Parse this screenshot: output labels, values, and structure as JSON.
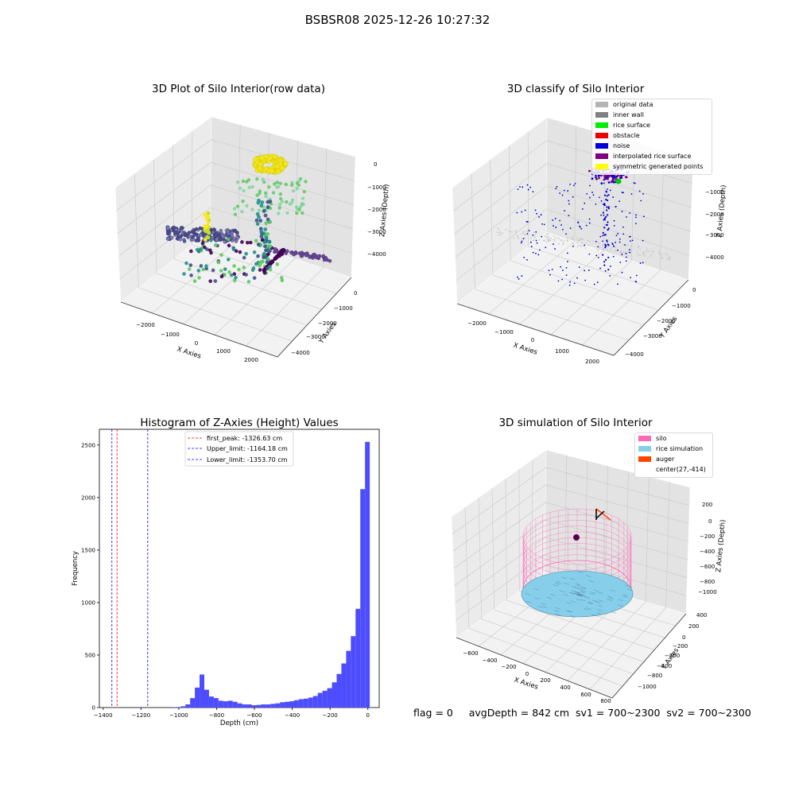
{
  "figure": {
    "suptitle": "BSBSR08 2025-12-26 10:27:32",
    "footer": "flag = 0     avgDepth = 842 cm  sv1 = 700~2300  sv2 = 700~2300"
  },
  "panel1": {
    "title": "3D Plot of Silo Interior(row data)",
    "xlabel": "X Axies",
    "ylabel": "Y Axies",
    "zlabel": "Z Axies (Depth)",
    "xticks": [
      "−2000",
      "−1000",
      "0",
      "1000",
      "2000"
    ],
    "yticks": [
      "0",
      "−1000",
      "−2000",
      "−3000",
      "−4000"
    ],
    "zticks": [
      "0",
      "−1000",
      "−2000",
      "−3000",
      "−4000"
    ]
  },
  "panel2": {
    "title": "3D classify of Silo Interior",
    "xlabel": "X Axies",
    "ylabel": "Y Axies",
    "zlabel": "Z Axies (Depth)",
    "xticks": [
      "−2000",
      "−1000",
      "0",
      "1000",
      "2000"
    ],
    "yticks": [
      "0",
      "−1000",
      "−2000",
      "−3000",
      "−4000"
    ],
    "zticks": [
      "−1000",
      "−2000",
      "−3000",
      "−4000"
    ],
    "legend": [
      {
        "label": "original data",
        "color": "#b4b4b4"
      },
      {
        "label": "inner wall",
        "color": "#808080"
      },
      {
        "label": "rice surface",
        "color": "#00ee00"
      },
      {
        "label": "obstacle",
        "color": "#ee0000"
      },
      {
        "label": "noise",
        "color": "#0000dd"
      },
      {
        "label": "interpolated rice surface",
        "color": "#800080"
      },
      {
        "label": "symmetric generated points",
        "color": "#ffff00"
      }
    ]
  },
  "panel4": {
    "title": "3D simulation of Silo Interior",
    "xlabel": "X Axies",
    "ylabel": "Y Axies",
    "zlabel": "Z Axies (Depth)",
    "xticks": [
      "−600",
      "−400",
      "−200",
      "0",
      "200",
      "400",
      "600",
      "800"
    ],
    "yticks": [
      "400",
      "200",
      "0",
      "−200",
      "−400",
      "−600",
      "−800",
      "−1000"
    ],
    "zticks": [
      "200",
      "0",
      "−200",
      "−400",
      "−600",
      "−800",
      "−1000"
    ],
    "legend": [
      {
        "label": "silo",
        "color": "#ff69b4"
      },
      {
        "label": "rice simulation",
        "color": "#87ceeb"
      },
      {
        "label": "auger",
        "color": "#ff4500"
      },
      {
        "label": "center(27,-414)",
        "color": ""
      }
    ]
  },
  "chart_data": [
    {
      "type": "histogram",
      "title": "Histogram of Z-Axies (Height) Values",
      "xlabel": "Depth (cm)",
      "ylabel": "Frequency",
      "xlim": [
        -1400,
        0
      ],
      "ylim": [
        0,
        2650
      ],
      "xticks": [
        -1400,
        -1200,
        -1000,
        -800,
        -600,
        -400,
        -200,
        0
      ],
      "yticks": [
        0,
        500,
        1000,
        1500,
        2000,
        2500
      ],
      "bar_color": "#4d4dff",
      "bins": [
        {
          "x0": -1215,
          "x1": -1190,
          "v": 5
        },
        {
          "x0": -1040,
          "x1": -1015,
          "v": 3
        },
        {
          "x0": -1015,
          "x1": -990,
          "v": 5
        },
        {
          "x0": -990,
          "x1": -965,
          "v": 12
        },
        {
          "x0": -965,
          "x1": -940,
          "v": 30
        },
        {
          "x0": -940,
          "x1": -915,
          "v": 90
        },
        {
          "x0": -915,
          "x1": -890,
          "v": 190
        },
        {
          "x0": -890,
          "x1": -865,
          "v": 315
        },
        {
          "x0": -865,
          "x1": -840,
          "v": 170
        },
        {
          "x0": -840,
          "x1": -815,
          "v": 105
        },
        {
          "x0": -815,
          "x1": -790,
          "v": 90
        },
        {
          "x0": -790,
          "x1": -765,
          "v": 65
        },
        {
          "x0": -765,
          "x1": -740,
          "v": 60
        },
        {
          "x0": -740,
          "x1": -715,
          "v": 65
        },
        {
          "x0": -715,
          "x1": -690,
          "v": 55
        },
        {
          "x0": -690,
          "x1": -665,
          "v": 40
        },
        {
          "x0": -665,
          "x1": -640,
          "v": 30
        },
        {
          "x0": -640,
          "x1": -615,
          "v": 30
        },
        {
          "x0": -615,
          "x1": -590,
          "v": 22
        },
        {
          "x0": -590,
          "x1": -565,
          "v": 25
        },
        {
          "x0": -565,
          "x1": -540,
          "v": 30
        },
        {
          "x0": -540,
          "x1": -515,
          "v": 30
        },
        {
          "x0": -515,
          "x1": -490,
          "v": 35
        },
        {
          "x0": -490,
          "x1": -465,
          "v": 40
        },
        {
          "x0": -465,
          "x1": -440,
          "v": 50
        },
        {
          "x0": -440,
          "x1": -415,
          "v": 55
        },
        {
          "x0": -415,
          "x1": -390,
          "v": 60
        },
        {
          "x0": -390,
          "x1": -365,
          "v": 70
        },
        {
          "x0": -365,
          "x1": -340,
          "v": 80
        },
        {
          "x0": -340,
          "x1": -315,
          "v": 85
        },
        {
          "x0": -315,
          "x1": -290,
          "v": 95
        },
        {
          "x0": -290,
          "x1": -265,
          "v": 110
        },
        {
          "x0": -265,
          "x1": -240,
          "v": 140
        },
        {
          "x0": -240,
          "x1": -215,
          "v": 160
        },
        {
          "x0": -215,
          "x1": -190,
          "v": 185
        },
        {
          "x0": -190,
          "x1": -165,
          "v": 240
        },
        {
          "x0": -165,
          "x1": -140,
          "v": 320
        },
        {
          "x0": -140,
          "x1": -115,
          "v": 420
        },
        {
          "x0": -115,
          "x1": -90,
          "v": 540
        },
        {
          "x0": -90,
          "x1": -65,
          "v": 680
        },
        {
          "x0": -65,
          "x1": -40,
          "v": 940
        },
        {
          "x0": -40,
          "x1": -15,
          "v": 2080
        },
        {
          "x0": -15,
          "x1": 10,
          "v": 2530
        }
      ],
      "vlines": [
        {
          "label": "first_peak: -1326.63 cm",
          "x": -1326.63,
          "color": "#ff0000"
        },
        {
          "label": "Upper_limit: -1164.18 cm",
          "x": -1164.18,
          "color": "#0000ff"
        },
        {
          "label": "Lower_limit: -1353.70 cm",
          "x": -1353.7,
          "color": "#0000ff"
        }
      ]
    }
  ]
}
